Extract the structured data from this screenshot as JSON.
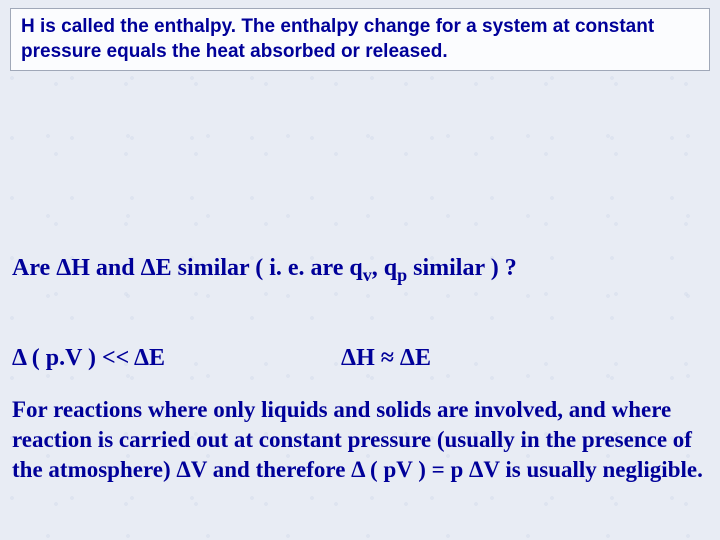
{
  "header": {
    "text": "H is called the enthalpy. The enthalpy change for a system at constant pressure equals the heat absorbed or released."
  },
  "question": {
    "prefix": "Are ΔH and ΔE similar ( i. e. are q",
    "sub1": "v",
    "mid": ", q",
    "sub2": "p",
    "suffix": " similar ) ?"
  },
  "equations": {
    "eq1": "Δ ( p.V )  << ΔE",
    "eq2": "ΔH  ≈ ΔE"
  },
  "paragraph": {
    "text": "For reactions where only liquids and solids are involved, and where reaction is carried out at constant pressure (usually in the presence of the atmosphere) ΔV and therefore Δ ( pV )  =  p ΔV is usually negligible."
  },
  "colors": {
    "text": "#000099",
    "background": "#e8ecf4",
    "box_bg": "#fbfcfe",
    "box_border": "#a0a8b8"
  }
}
